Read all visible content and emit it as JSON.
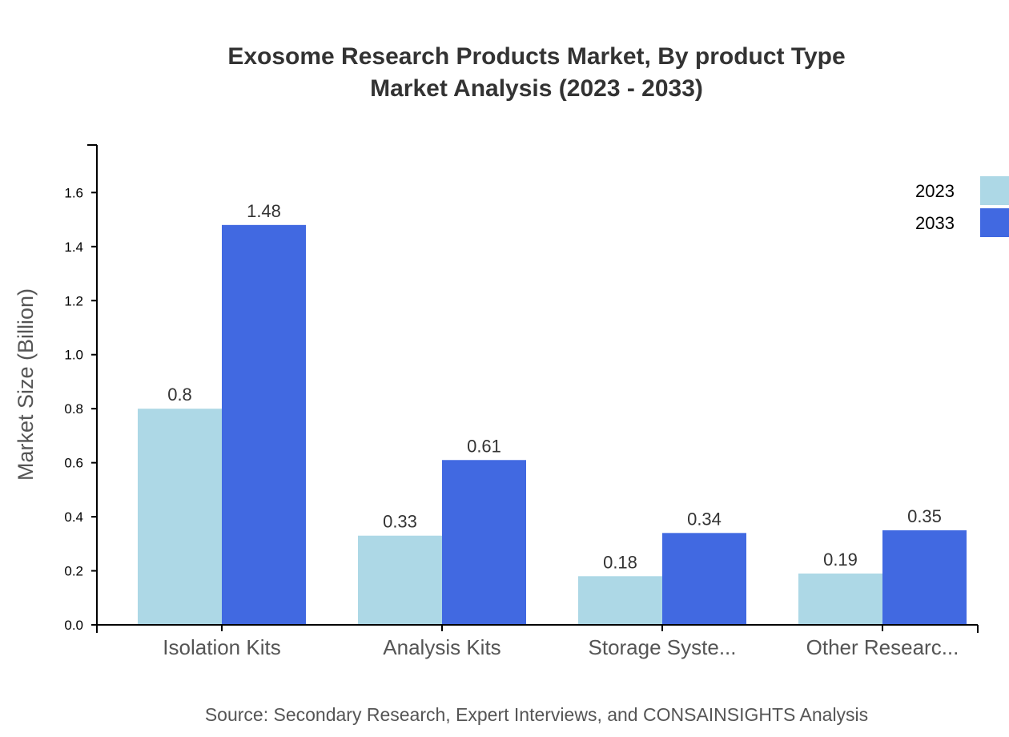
{
  "chart_data": {
    "type": "bar",
    "title": "Exosome Research Products Market, By product Type",
    "subtitle": "Market Analysis (2023 - 2033)",
    "xlabel": "",
    "ylabel": "Market Size (Billion)",
    "ylim": [
      0,
      1.776
    ],
    "yticks": [
      "0.0",
      "0.2",
      "0.4",
      "0.6",
      "0.8",
      "1.0",
      "1.2",
      "1.4",
      "1.6"
    ],
    "categories": [
      "Isolation Kits",
      "Analysis Kits",
      "Storage Syste...",
      "Other Researc..."
    ],
    "series": [
      {
        "name": "2023",
        "color": "#add8e6",
        "values": [
          0.8,
          0.33,
          0.18,
          0.19
        ],
        "labels": [
          "0.8",
          "0.33",
          "0.18",
          "0.19"
        ]
      },
      {
        "name": "2033",
        "color": "#4169e1",
        "values": [
          1.48,
          0.61,
          0.34,
          0.35
        ],
        "labels": [
          "1.48",
          "0.61",
          "0.34",
          "0.35"
        ]
      }
    ],
    "grid": false,
    "legend_position": "top-right",
    "source": "Source: Secondary Research, Expert Interviews, and CONSAINSIGHTS Analysis"
  }
}
